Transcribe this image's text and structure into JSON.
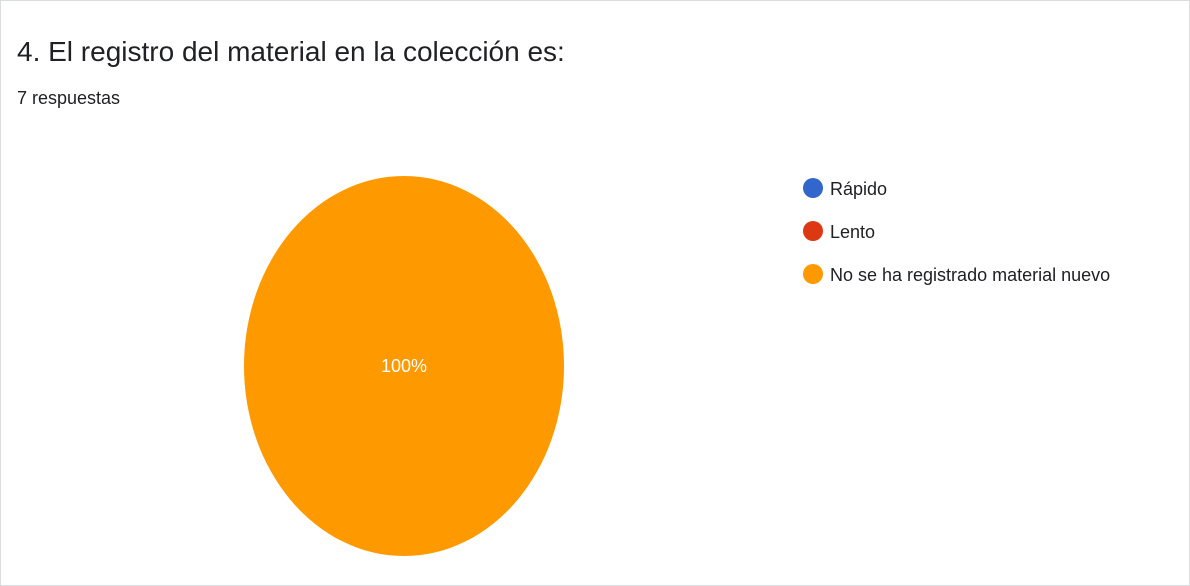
{
  "header": {
    "title": "4. El registro del material en la colección es:",
    "responses": "7 respuestas"
  },
  "chart_data": {
    "type": "pie",
    "title": "4. El registro del material en la colección es:",
    "categories": [
      "Rápido",
      "Lento",
      "No se ha registrado material nuevo"
    ],
    "values": [
      0,
      0,
      100
    ],
    "labels": [
      "",
      "",
      "100%"
    ],
    "colors": [
      "#3366cc",
      "#dc3912",
      "#ff9900"
    ],
    "legend_position": "right"
  }
}
